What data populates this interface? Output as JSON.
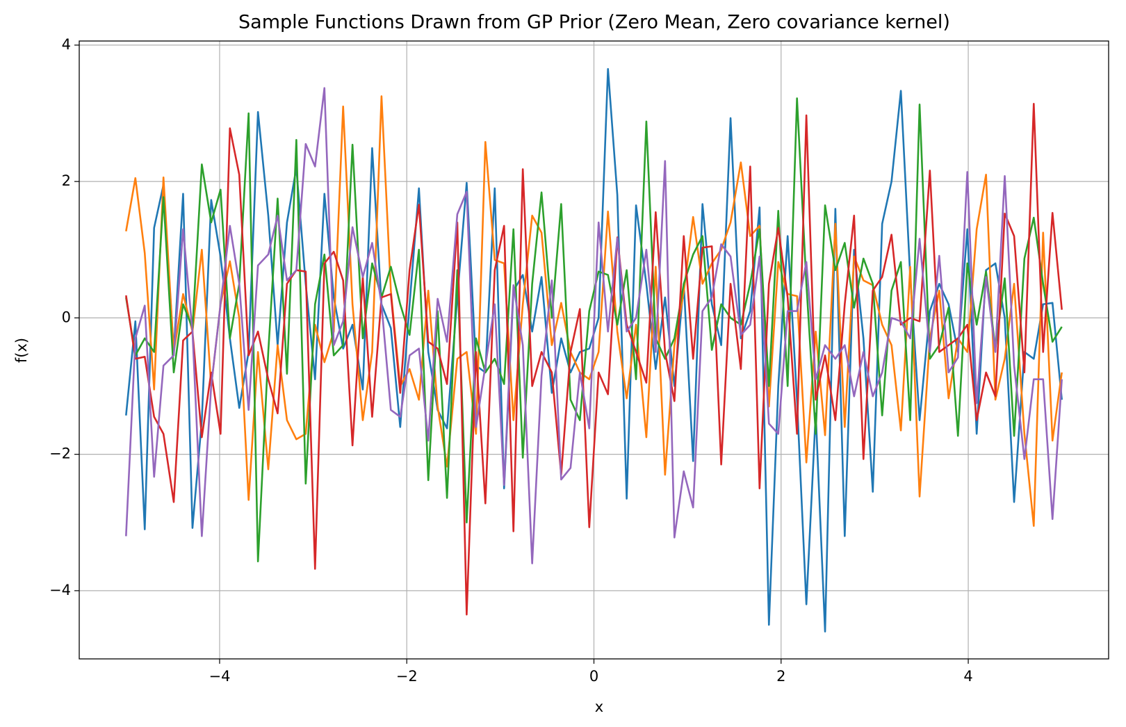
{
  "chart_data": {
    "type": "line",
    "title": "Sample Functions Drawn from GP Prior (Zero Mean, Zero covariance kernel)",
    "x_label": "x",
    "y_label": "f(x)",
    "x": [
      -5.0,
      -4.9,
      -4.8,
      -4.7,
      -4.6,
      -4.49,
      -4.39,
      -4.29,
      -4.19,
      -4.09,
      -3.99,
      -3.89,
      -3.79,
      -3.69,
      -3.59,
      -3.48,
      -3.38,
      -3.28,
      -3.18,
      -3.08,
      -2.98,
      -2.88,
      -2.78,
      -2.68,
      -2.58,
      -2.47,
      -2.37,
      -2.27,
      -2.17,
      -2.07,
      -1.97,
      -1.87,
      -1.77,
      -1.67,
      -1.57,
      -1.46,
      -1.36,
      -1.26,
      -1.16,
      -1.06,
      -0.96,
      -0.86,
      -0.76,
      -0.66,
      -0.56,
      -0.45,
      -0.35,
      -0.25,
      -0.15,
      -0.05,
      0.05,
      0.15,
      0.25,
      0.35,
      0.45,
      0.56,
      0.66,
      0.76,
      0.86,
      0.96,
      1.06,
      1.16,
      1.26,
      1.36,
      1.46,
      1.57,
      1.67,
      1.77,
      1.87,
      1.97,
      2.07,
      2.17,
      2.27,
      2.37,
      2.47,
      2.58,
      2.68,
      2.78,
      2.88,
      2.98,
      3.08,
      3.18,
      3.28,
      3.38,
      3.48,
      3.59,
      3.69,
      3.79,
      3.89,
      3.99,
      4.09,
      4.19,
      4.29,
      4.39,
      4.49,
      4.6,
      4.7,
      4.8,
      4.9,
      5.0
    ],
    "series": [
      {
        "color": "#1f77b4",
        "values": [
          -1.43,
          -0.05,
          -3.1,
          1.32,
          1.95,
          -0.5,
          1.82,
          -3.08,
          -1.5,
          1.73,
          0.9,
          -0.3,
          -1.32,
          -0.5,
          3.02,
          1.5,
          -0.4,
          1.4,
          2.2,
          0.5,
          -0.9,
          1.82,
          0.3,
          -0.45,
          -0.1,
          -1.05,
          2.49,
          0.2,
          -0.15,
          -1.6,
          0.2,
          1.9,
          -0.5,
          -1.35,
          -1.62,
          0.3,
          1.98,
          -0.7,
          -0.8,
          1.9,
          -2.5,
          0.4,
          0.63,
          -0.2,
          0.6,
          -1.1,
          -0.3,
          -0.8,
          -0.5,
          -0.45,
          0.0,
          3.65,
          1.8,
          -2.65,
          1.65,
          0.5,
          -0.75,
          0.3,
          -1.0,
          0.5,
          -2.1,
          1.67,
          0.2,
          -0.4,
          2.93,
          -0.3,
          0.1,
          1.62,
          -4.5,
          -1.0,
          1.2,
          -1.2,
          -4.2,
          -1.4,
          -4.6,
          1.6,
          -3.2,
          1.0,
          -0.3,
          -2.55,
          1.38,
          2.0,
          3.33,
          0.6,
          -1.5,
          0.1,
          0.5,
          0.2,
          -0.5,
          1.3,
          -1.7,
          0.7,
          0.8,
          0.0,
          -2.7,
          -0.5,
          -0.6,
          0.2,
          0.22,
          -1.2
        ]
      },
      {
        "color": "#ff7f0e",
        "values": [
          1.27,
          2.05,
          0.95,
          -1.05,
          2.06,
          -0.5,
          0.35,
          -0.2,
          1.0,
          -1.0,
          0.2,
          0.83,
          0.0,
          -2.67,
          -0.5,
          -2.22,
          -0.4,
          -1.5,
          -1.78,
          -1.7,
          -0.1,
          -0.65,
          -0.2,
          3.1,
          0.2,
          -1.5,
          -0.5,
          3.25,
          0.4,
          -1.0,
          -0.75,
          -1.2,
          0.4,
          -1.3,
          -2.18,
          -0.6,
          -0.5,
          -1.7,
          2.58,
          0.85,
          0.8,
          -1.5,
          0.2,
          1.5,
          1.25,
          -0.4,
          0.22,
          -0.5,
          -0.8,
          -0.9,
          -0.5,
          1.56,
          -0.2,
          -1.18,
          -0.1,
          -1.75,
          0.75,
          -2.3,
          -0.4,
          0.38,
          1.48,
          0.5,
          0.8,
          1.0,
          1.4,
          2.28,
          1.2,
          1.35,
          -1.3,
          0.82,
          0.35,
          0.32,
          -2.12,
          -0.2,
          -1.72,
          1.38,
          -1.6,
          0.9,
          0.55,
          0.48,
          -0.1,
          -0.4,
          -1.65,
          0.75,
          -2.62,
          -0.3,
          0.4,
          -1.18,
          -0.3,
          -0.5,
          1.3,
          2.1,
          -1.2,
          -0.6,
          0.5,
          -1.7,
          -3.05,
          1.25,
          -1.8,
          -0.8
        ]
      },
      {
        "color": "#2ca02c",
        "values": [
          0.3,
          -0.55,
          -0.3,
          -0.5,
          1.77,
          -0.8,
          0.2,
          -0.15,
          2.25,
          1.4,
          1.88,
          -0.3,
          0.5,
          3.0,
          -3.57,
          -0.5,
          1.75,
          -0.82,
          2.61,
          -2.43,
          0.2,
          0.93,
          -0.55,
          -0.4,
          2.54,
          -0.3,
          0.8,
          0.3,
          0.75,
          0.2,
          -0.25,
          1.0,
          -2.38,
          0.1,
          -2.64,
          0.7,
          -3.0,
          -0.3,
          -0.8,
          -0.6,
          -0.97,
          1.3,
          -2.05,
          0.5,
          1.84,
          0.0,
          1.67,
          -1.2,
          -1.5,
          0.1,
          0.68,
          0.63,
          -0.1,
          0.7,
          -0.9,
          2.88,
          -0.3,
          -0.6,
          -0.3,
          0.5,
          0.93,
          1.2,
          -0.47,
          0.2,
          0.0,
          -0.1,
          0.5,
          1.3,
          -1.0,
          1.57,
          -1.0,
          3.22,
          0.5,
          -1.7,
          1.65,
          0.7,
          1.1,
          0.15,
          0.87,
          0.5,
          -1.43,
          0.4,
          0.82,
          -1.5,
          3.13,
          -0.6,
          -0.4,
          0.15,
          -1.73,
          0.8,
          -0.1,
          0.68,
          -0.45,
          0.58,
          -1.73,
          0.87,
          1.47,
          0.5,
          -0.35,
          -0.13
        ]
      },
      {
        "color": "#d62728",
        "values": [
          0.33,
          -0.6,
          -0.57,
          -1.45,
          -1.7,
          -2.7,
          -0.33,
          -0.2,
          -1.75,
          -0.8,
          -1.7,
          2.78,
          2.1,
          -0.55,
          -0.2,
          -0.9,
          -1.4,
          0.5,
          0.7,
          0.68,
          -3.68,
          0.8,
          0.97,
          0.55,
          -1.87,
          0.6,
          -1.45,
          0.3,
          0.35,
          -1.1,
          0.7,
          1.66,
          -0.35,
          -0.45,
          -0.97,
          1.4,
          -4.35,
          -0.5,
          -2.72,
          0.7,
          1.35,
          -3.13,
          2.18,
          -1.0,
          -0.5,
          -0.8,
          -2.3,
          -0.5,
          0.13,
          -3.07,
          -0.8,
          -1.12,
          1.18,
          -0.1,
          -0.5,
          -0.95,
          1.55,
          -0.5,
          -1.22,
          1.2,
          -0.6,
          1.03,
          1.05,
          -2.15,
          0.5,
          -0.75,
          2.22,
          -2.5,
          0.5,
          1.32,
          0.3,
          -1.7,
          2.97,
          -1.2,
          -0.55,
          -1.5,
          0.2,
          1.5,
          -2.07,
          0.4,
          0.6,
          1.22,
          -0.1,
          0.0,
          -0.05,
          2.16,
          -0.5,
          -0.4,
          -0.3,
          -0.1,
          -1.5,
          -0.8,
          -1.15,
          1.53,
          1.2,
          -0.8,
          3.14,
          -0.5,
          1.54,
          0.12
        ]
      },
      {
        "color": "#9467bd",
        "values": [
          -3.2,
          -0.3,
          0.18,
          -2.33,
          -0.7,
          -0.55,
          1.3,
          -0.2,
          -3.2,
          -1.0,
          0.2,
          1.35,
          0.5,
          -1.35,
          0.77,
          0.93,
          1.5,
          0.55,
          0.7,
          2.55,
          2.22,
          3.37,
          -0.4,
          -0.05,
          1.33,
          0.6,
          1.1,
          0.2,
          -1.35,
          -1.45,
          -0.55,
          -0.45,
          -1.8,
          0.28,
          -0.35,
          1.52,
          1.85,
          -1.6,
          -0.7,
          0.2,
          -2.45,
          0.48,
          -0.4,
          -3.6,
          -0.85,
          0.55,
          -2.37,
          -2.2,
          -0.8,
          -1.62,
          1.4,
          -0.2,
          1.17,
          -0.2,
          0.0,
          1.0,
          -0.5,
          2.3,
          -3.22,
          -2.25,
          -2.78,
          0.1,
          0.3,
          1.08,
          0.9,
          -0.25,
          -0.1,
          0.9,
          -1.55,
          -1.7,
          0.1,
          0.1,
          0.82,
          -0.9,
          -0.4,
          -0.6,
          -0.4,
          -1.15,
          -0.5,
          -1.15,
          -0.8,
          0.0,
          -0.05,
          -0.3,
          1.16,
          -0.5,
          0.91,
          -0.8,
          -0.58,
          2.14,
          -1.25,
          0.6,
          -0.5,
          2.08,
          -0.7,
          -2.07,
          -0.9,
          -0.9,
          -2.95,
          -0.9
        ]
      }
    ],
    "xlim": [
      -5.5,
      5.5
    ],
    "ylim": [
      -5.0,
      4.06
    ],
    "xticks": [
      {
        "value": -4,
        "label": "−4"
      },
      {
        "value": -2,
        "label": "−2"
      },
      0,
      2,
      4
    ],
    "yticks": [
      {
        "value": -4,
        "label": "−4"
      },
      {
        "value": -2,
        "label": "−2"
      },
      0,
      2,
      4
    ],
    "grid": true
  }
}
